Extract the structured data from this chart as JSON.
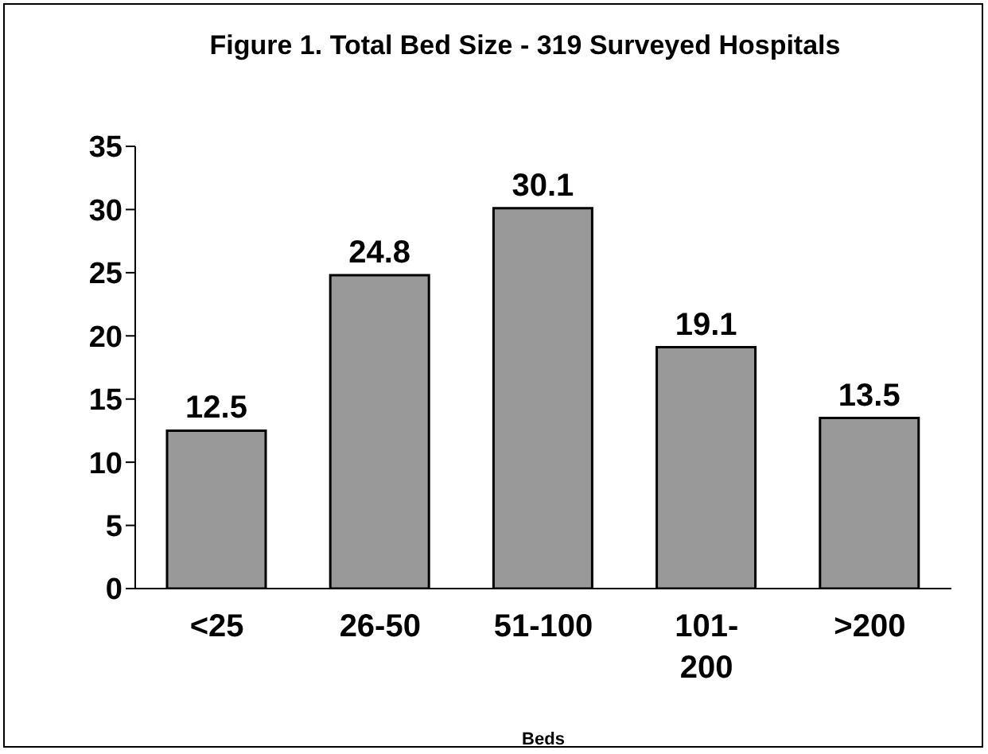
{
  "chart_data": {
    "type": "bar",
    "title": "Figure 1. Total Bed Size - 319 Surveyed Hospitals",
    "xlabel": "Beds",
    "categories": [
      "<25",
      "26-50",
      "51-100",
      "101-200",
      ">200"
    ],
    "values": [
      12.5,
      24.8,
      30.1,
      19.1,
      13.5
    ],
    "color": "#999999",
    "ylim": [
      0,
      35
    ],
    "yticks": [
      0,
      5,
      10,
      15,
      20,
      25,
      30,
      35
    ],
    "data_labels": true,
    "grid": false,
    "legend": false
  }
}
